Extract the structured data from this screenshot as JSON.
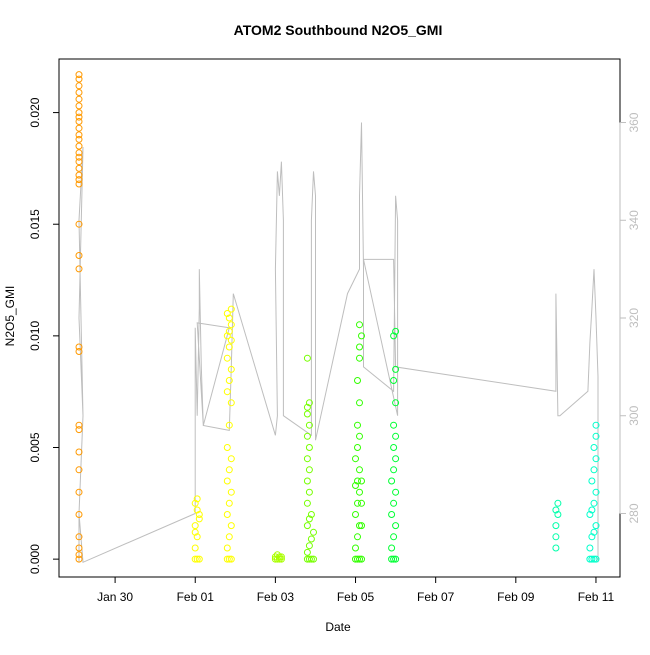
{
  "chart_data": {
    "type": "scatter",
    "title": "ATOM2 Southbound N2O5_GMI",
    "xlabel": "Date",
    "ylabel": "N2O5_GMI",
    "x_ticks": [
      {
        "value": 29.0,
        "label": "Jan 30"
      },
      {
        "value": 31.0,
        "label": "Feb 01"
      },
      {
        "value": 33.0,
        "label": "Feb 03"
      },
      {
        "value": 35.0,
        "label": "Feb 05"
      },
      {
        "value": 37.0,
        "label": "Feb 07"
      },
      {
        "value": 39.0,
        "label": "Feb 09"
      },
      {
        "value": 41.0,
        "label": "Feb 11"
      }
    ],
    "y_ticks": [
      {
        "value": 0.0,
        "label": "0.000"
      },
      {
        "value": 0.005,
        "label": "0.005"
      },
      {
        "value": 0.01,
        "label": "0.010"
      },
      {
        "value": 0.015,
        "label": "0.015"
      },
      {
        "value": 0.02,
        "label": "0.020"
      }
    ],
    "y2_ticks": [
      {
        "value": 280,
        "label": "280"
      },
      {
        "value": 300,
        "label": "300"
      },
      {
        "value": 320,
        "label": "320"
      },
      {
        "value": 340,
        "label": "340"
      },
      {
        "value": 360,
        "label": "360"
      }
    ],
    "xlim": [
      27.6,
      41.6
    ],
    "ylim": [
      -0.0008,
      0.0224
    ],
    "y2lim": [
      267.0,
      373.0
    ],
    "grid": false,
    "series": [
      {
        "color": "#ff9900",
        "points": [
          [
            28.1,
            0.0
          ],
          [
            28.1,
            0.0002
          ],
          [
            28.1,
            0.0005
          ],
          [
            28.1,
            0.001
          ],
          [
            28.1,
            0.002
          ],
          [
            28.1,
            0.003
          ],
          [
            28.1,
            0.004
          ],
          [
            28.1,
            0.0048
          ],
          [
            28.1,
            0.0058
          ],
          [
            28.1,
            0.006
          ],
          [
            28.1,
            0.0093
          ],
          [
            28.1,
            0.0095
          ],
          [
            28.1,
            0.013
          ],
          [
            28.1,
            0.0136
          ],
          [
            28.1,
            0.015
          ],
          [
            28.1,
            0.0168
          ],
          [
            28.1,
            0.017
          ],
          [
            28.1,
            0.0172
          ],
          [
            28.1,
            0.0175
          ],
          [
            28.1,
            0.0178
          ],
          [
            28.1,
            0.018
          ],
          [
            28.1,
            0.0182
          ],
          [
            28.1,
            0.0185
          ],
          [
            28.1,
            0.0188
          ],
          [
            28.1,
            0.019
          ],
          [
            28.1,
            0.0193
          ],
          [
            28.1,
            0.0196
          ],
          [
            28.1,
            0.0198
          ],
          [
            28.1,
            0.02
          ],
          [
            28.1,
            0.0203
          ],
          [
            28.1,
            0.0206
          ],
          [
            28.1,
            0.0209
          ],
          [
            28.1,
            0.0212
          ],
          [
            28.1,
            0.0215
          ],
          [
            28.1,
            0.0217
          ]
        ]
      },
      {
        "color": "#ffff00",
        "points": [
          [
            31.0,
            0.0
          ],
          [
            31.05,
            0.0
          ],
          [
            31.1,
            0.0
          ],
          [
            31.0,
            0.0005
          ],
          [
            31.05,
            0.001
          ],
          [
            31.0,
            0.0015
          ],
          [
            31.1,
            0.002
          ],
          [
            31.0,
            0.0025
          ],
          [
            31.05,
            0.0022
          ],
          [
            31.1,
            0.0018
          ],
          [
            31.0,
            0.0012
          ],
          [
            31.05,
            0.0027
          ],
          [
            31.8,
            0.0
          ],
          [
            31.85,
            0.0
          ],
          [
            31.9,
            0.0
          ],
          [
            31.8,
            0.0005
          ],
          [
            31.85,
            0.001
          ],
          [
            31.9,
            0.0015
          ],
          [
            31.8,
            0.002
          ],
          [
            31.85,
            0.0025
          ],
          [
            31.9,
            0.003
          ],
          [
            31.8,
            0.0035
          ],
          [
            31.85,
            0.004
          ],
          [
            31.9,
            0.0045
          ],
          [
            31.8,
            0.005
          ],
          [
            31.85,
            0.006
          ],
          [
            31.9,
            0.007
          ],
          [
            31.8,
            0.0075
          ],
          [
            31.85,
            0.008
          ],
          [
            31.9,
            0.0085
          ],
          [
            31.8,
            0.009
          ],
          [
            31.85,
            0.0095
          ],
          [
            31.9,
            0.0098
          ],
          [
            31.8,
            0.01
          ],
          [
            31.85,
            0.0102
          ],
          [
            31.9,
            0.0105
          ],
          [
            31.85,
            0.0108
          ],
          [
            31.8,
            0.011
          ],
          [
            31.9,
            0.0112
          ]
        ]
      },
      {
        "color": "#aaff00",
        "points": [
          [
            33.0,
            0.0
          ],
          [
            33.05,
            0.0
          ],
          [
            33.1,
            0.0
          ],
          [
            33.15,
            0.0
          ],
          [
            33.0,
            0.0001
          ],
          [
            33.1,
            0.0001
          ],
          [
            33.05,
            0.0002
          ],
          [
            33.15,
            0.0001
          ]
        ]
      },
      {
        "color": "#77ff00",
        "points": [
          [
            33.8,
            0.0
          ],
          [
            33.85,
            0.0
          ],
          [
            33.9,
            0.0
          ],
          [
            33.95,
            0.0
          ],
          [
            33.8,
            0.0003
          ],
          [
            33.85,
            0.0006
          ],
          [
            33.9,
            0.0009
          ],
          [
            33.95,
            0.0012
          ],
          [
            33.8,
            0.0015
          ],
          [
            33.85,
            0.0018
          ],
          [
            33.9,
            0.002
          ],
          [
            33.8,
            0.0025
          ],
          [
            33.85,
            0.003
          ],
          [
            33.8,
            0.0035
          ],
          [
            33.85,
            0.004
          ],
          [
            33.8,
            0.0045
          ],
          [
            33.85,
            0.005
          ],
          [
            33.8,
            0.0055
          ],
          [
            33.85,
            0.006
          ],
          [
            33.8,
            0.0065
          ],
          [
            33.8,
            0.0068
          ],
          [
            33.85,
            0.007
          ],
          [
            33.8,
            0.009
          ]
        ]
      },
      {
        "color": "#33ff00",
        "points": [
          [
            35.0,
            0.0
          ],
          [
            35.05,
            0.0
          ],
          [
            35.1,
            0.0
          ],
          [
            35.15,
            0.0
          ],
          [
            35.0,
            0.0005
          ],
          [
            35.05,
            0.001
          ],
          [
            35.1,
            0.0015
          ],
          [
            35.0,
            0.002
          ],
          [
            35.05,
            0.0025
          ],
          [
            35.1,
            0.003
          ],
          [
            35.0,
            0.0033
          ],
          [
            35.05,
            0.0035
          ],
          [
            35.1,
            0.004
          ],
          [
            35.0,
            0.0045
          ],
          [
            35.05,
            0.005
          ],
          [
            35.1,
            0.0055
          ],
          [
            35.05,
            0.006
          ],
          [
            35.1,
            0.007
          ],
          [
            35.05,
            0.008
          ],
          [
            35.1,
            0.009
          ],
          [
            35.1,
            0.0095
          ],
          [
            35.15,
            0.01
          ],
          [
            35.1,
            0.0105
          ],
          [
            35.15,
            0.0015
          ],
          [
            35.15,
            0.0025
          ],
          [
            35.15,
            0.0035
          ]
        ]
      },
      {
        "color": "#00ff33",
        "points": [
          [
            35.9,
            0.0
          ],
          [
            35.95,
            0.0
          ],
          [
            36.0,
            0.0
          ],
          [
            35.9,
            0.0005
          ],
          [
            35.95,
            0.001
          ],
          [
            36.0,
            0.0015
          ],
          [
            35.9,
            0.002
          ],
          [
            35.95,
            0.0025
          ],
          [
            36.0,
            0.003
          ],
          [
            35.9,
            0.0035
          ],
          [
            35.95,
            0.004
          ],
          [
            36.0,
            0.0045
          ],
          [
            35.95,
            0.005
          ],
          [
            36.0,
            0.0055
          ],
          [
            35.95,
            0.006
          ],
          [
            36.0,
            0.007
          ],
          [
            35.95,
            0.008
          ],
          [
            36.0,
            0.0085
          ],
          [
            35.95,
            0.01
          ],
          [
            36.0,
            0.0102
          ]
        ]
      },
      {
        "color": "#00ffaa",
        "points": [
          [
            40.0,
            0.0005
          ],
          [
            40.0,
            0.001
          ],
          [
            40.0,
            0.0015
          ],
          [
            40.05,
            0.002
          ],
          [
            40.0,
            0.0022
          ],
          [
            40.05,
            0.0025
          ]
        ]
      },
      {
        "color": "#00ffcc",
        "points": [
          [
            40.85,
            0.0
          ],
          [
            40.9,
            0.0
          ],
          [
            40.95,
            0.0
          ],
          [
            41.0,
            0.0
          ],
          [
            40.85,
            0.0005
          ],
          [
            40.9,
            0.001
          ],
          [
            40.95,
            0.0012
          ],
          [
            41.0,
            0.0015
          ],
          [
            40.85,
            0.002
          ],
          [
            40.9,
            0.0022
          ],
          [
            40.95,
            0.0025
          ],
          [
            41.0,
            0.003
          ],
          [
            40.9,
            0.0035
          ],
          [
            40.95,
            0.004
          ],
          [
            41.0,
            0.0045
          ],
          [
            40.95,
            0.005
          ],
          [
            41.0,
            0.0055
          ],
          [
            41.0,
            0.006
          ]
        ]
      }
    ],
    "secondary_series": {
      "color": "#bebebe",
      "type": "line",
      "points": [
        [
          28.1,
          270
        ],
        [
          28.1,
          280
        ],
        [
          28.2,
          300
        ],
        [
          28.1,
          320
        ],
        [
          28.2,
          355
        ],
        [
          28.1,
          340
        ],
        [
          28.2,
          300
        ],
        [
          28.1,
          280
        ],
        [
          28.2,
          270
        ],
        [
          31.0,
          280
        ],
        [
          31.0,
          318
        ],
        [
          31.05,
          300
        ],
        [
          31.1,
          322
        ],
        [
          31.1,
          330
        ],
        [
          31.15,
          310
        ],
        [
          31.2,
          298
        ],
        [
          31.05,
          319
        ],
        [
          31.85,
          318
        ],
        [
          31.2,
          298
        ],
        [
          31.85,
          297
        ],
        [
          31.9,
          310
        ],
        [
          31.95,
          325
        ],
        [
          33.0,
          296
        ],
        [
          33.05,
          300
        ],
        [
          33.0,
          330
        ],
        [
          33.05,
          350
        ],
        [
          33.1,
          345
        ],
        [
          33.15,
          352
        ],
        [
          33.2,
          340
        ],
        [
          33.2,
          300
        ],
        [
          33.9,
          296
        ],
        [
          33.9,
          340
        ],
        [
          33.95,
          350
        ],
        [
          34.0,
          345
        ],
        [
          34.0,
          300
        ],
        [
          34.0,
          295
        ],
        [
          34.8,
          325
        ],
        [
          35.1,
          330
        ],
        [
          35.1,
          345
        ],
        [
          35.15,
          360
        ],
        [
          35.2,
          330
        ],
        [
          35.2,
          310
        ],
        [
          35.95,
          305
        ],
        [
          36.0,
          345
        ],
        [
          36.05,
          340
        ],
        [
          36.05,
          300
        ],
        [
          35.2,
          332
        ],
        [
          35.95,
          332
        ],
        [
          36.0,
          310
        ],
        [
          40.0,
          305
        ],
        [
          40.0,
          325
        ],
        [
          40.05,
          300
        ],
        [
          40.1,
          300
        ],
        [
          40.8,
          305
        ],
        [
          40.85,
          315
        ],
        [
          40.9,
          322
        ],
        [
          40.95,
          330
        ],
        [
          41.0,
          320
        ],
        [
          41.05,
          308
        ],
        [
          41.05,
          270
        ]
      ]
    }
  }
}
